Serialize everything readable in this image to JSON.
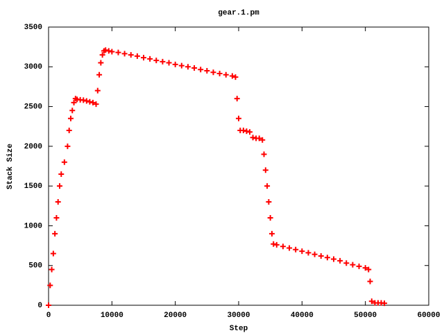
{
  "chart_data": {
    "type": "scatter",
    "title": "gear.1.pm",
    "xlabel": "Step",
    "ylabel": "Stack Size",
    "marker": "+",
    "color": "#ff0000",
    "x": [
      0,
      250,
      500,
      750,
      1000,
      1250,
      1500,
      1750,
      2000,
      2500,
      3000,
      3250,
      3500,
      3750,
      4000,
      4250,
      4500,
      5000,
      5500,
      6000,
      6500,
      7000,
      7500,
      7750,
      8000,
      8250,
      8500,
      8750,
      9000,
      9500,
      10000,
      11000,
      12000,
      13000,
      14000,
      15000,
      16000,
      17000,
      18000,
      19000,
      20000,
      21000,
      22000,
      23000,
      24000,
      25000,
      26000,
      27000,
      28000,
      29000,
      29500,
      29750,
      30000,
      30250,
      30750,
      31250,
      31750,
      32250,
      32750,
      33250,
      33750,
      34000,
      34250,
      34500,
      34750,
      35000,
      35250,
      35500,
      36000,
      37000,
      38000,
      39000,
      40000,
      41000,
      42000,
      43000,
      44000,
      45000,
      46000,
      47000,
      48000,
      49000,
      50000,
      50500,
      50750,
      51000,
      51500,
      52000,
      52500,
      53000
    ],
    "values": [
      0,
      250,
      450,
      650,
      900,
      1100,
      1300,
      1500,
      1650,
      1800,
      2000,
      2200,
      2350,
      2450,
      2550,
      2600,
      2590,
      2585,
      2580,
      2570,
      2560,
      2550,
      2530,
      2700,
      2900,
      3050,
      3150,
      3200,
      3210,
      3200,
      3190,
      3180,
      3165,
      3150,
      3135,
      3115,
      3100,
      3080,
      3065,
      3050,
      3030,
      3015,
      3000,
      2985,
      2965,
      2950,
      2930,
      2915,
      2900,
      2885,
      2870,
      2600,
      2350,
      2200,
      2200,
      2190,
      2180,
      2110,
      2100,
      2100,
      2080,
      1900,
      1700,
      1500,
      1300,
      1100,
      900,
      770,
      760,
      740,
      720,
      700,
      680,
      660,
      640,
      620,
      600,
      580,
      560,
      530,
      510,
      490,
      470,
      450,
      300,
      50,
      30,
      30,
      30,
      25
    ],
    "xlim": [
      0,
      60000
    ],
    "xticks": [
      0,
      10000,
      20000,
      30000,
      40000,
      50000,
      60000
    ],
    "ylim": [
      0,
      3500
    ],
    "yticks": [
      0,
      500,
      1000,
      1500,
      2000,
      2500,
      3000,
      3500
    ]
  }
}
